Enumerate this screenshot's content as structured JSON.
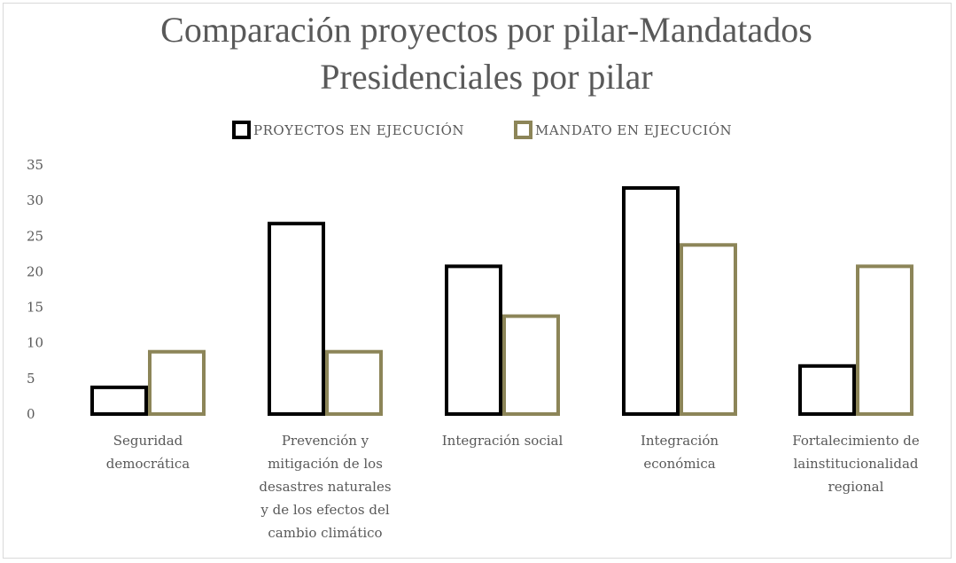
{
  "chart_data": {
    "type": "bar",
    "title_lines": [
      "Comparación proyectos por pilar-Mandatados",
      "Presidenciales por pilar"
    ],
    "categories": [
      [
        "Seguridad",
        "democrática"
      ],
      [
        "Prevención y",
        "mitigación de los",
        "desastres naturales",
        "y de los efectos del",
        "cambio climático"
      ],
      [
        "Integración social"
      ],
      [
        "Integración",
        "económica"
      ],
      [
        "Fortalecimiento de",
        "lainstitucionalidad",
        "regional"
      ]
    ],
    "series": [
      {
        "name": "PROYECTOS EN EJECUCIÓN",
        "color": "#000000",
        "values": [
          4,
          27,
          21,
          32,
          7
        ]
      },
      {
        "name": "MANDATO EN EJECUCIÓN",
        "color": "#8c8558",
        "values": [
          9,
          9,
          14,
          24,
          21
        ]
      }
    ],
    "yticks": [
      0,
      5,
      10,
      15,
      20,
      25,
      30,
      35
    ],
    "ylim": [
      0,
      35
    ],
    "bar_style": "outlined",
    "grid": false,
    "legend_position": "top-center"
  }
}
